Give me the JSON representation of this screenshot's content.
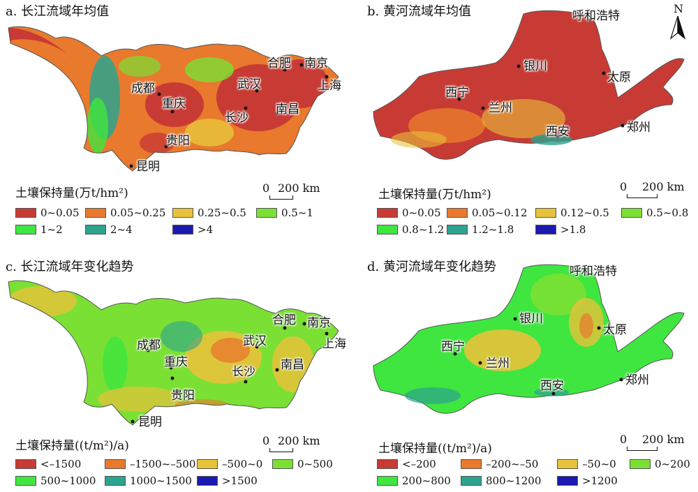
{
  "panels": [
    {
      "id": "a",
      "title": "a. 长江流域年均值",
      "legend_title": "土壤保持量(万t/hm²)",
      "legend": [
        {
          "label": "0~0.05",
          "color": "#c83b35"
        },
        {
          "label": "0.05~0.25",
          "color": "#e8792d"
        },
        {
          "label": "0.25~0.5",
          "color": "#e8c23a"
        },
        {
          "label": "0.5~1",
          "color": "#7be034"
        },
        {
          "label": "1~2",
          "color": "#3fe63f"
        },
        {
          "label": "2~4",
          "color": "#2ba38e"
        },
        {
          "label": ">4",
          "color": "#1a1ab0"
        }
      ],
      "scale_label": "200 km",
      "cities": [
        "昆明",
        "贵阳",
        "重庆",
        "成都",
        "长沙",
        "武汉",
        "南昌",
        "合肥",
        "南京",
        "上海"
      ]
    },
    {
      "id": "b",
      "title": "b. 黄河流域年均值",
      "legend_title": "土壤保持量(万t/hm²)",
      "legend": [
        {
          "label": "0~0.05",
          "color": "#c83b35"
        },
        {
          "label": "0.05~0.12",
          "color": "#e8792d"
        },
        {
          "label": "0.12~0.5",
          "color": "#e8c23a"
        },
        {
          "label": "0.5~0.8",
          "color": "#7be034"
        },
        {
          "label": "0.8~1.2",
          "color": "#3fe63f"
        },
        {
          "label": "1.2~1.8",
          "color": "#2ba38e"
        },
        {
          "label": ">1.8",
          "color": "#1a1ab0"
        }
      ],
      "scale_label": "200 km",
      "cities": [
        "呼和浩特",
        "银川",
        "太原",
        "西宁",
        "兰州",
        "西安",
        "郑州"
      ]
    },
    {
      "id": "c",
      "title": "c. 长江流域年变化趋势",
      "legend_title": "土壤保持量((t/m²)/a)",
      "legend": [
        {
          "label": "<–1500",
          "color": "#c83b35"
        },
        {
          "label": "–1500~–500",
          "color": "#e8792d"
        },
        {
          "label": "–500~0",
          "color": "#e8c23a"
        },
        {
          "label": "0~500",
          "color": "#7be034"
        },
        {
          "label": "500~1000",
          "color": "#3fe63f"
        },
        {
          "label": "1000~1500",
          "color": "#2ba38e"
        },
        {
          "label": ">1500",
          "color": "#1a1ab0"
        }
      ],
      "scale_label": "200 km",
      "cities": [
        "昆明",
        "贵阳",
        "重庆",
        "成都",
        "长沙",
        "武汉",
        "南昌",
        "合肥",
        "南京",
        "上海"
      ]
    },
    {
      "id": "d",
      "title": "d. 黄河流域年变化趋势",
      "legend_title": "土壤保持量((t/m²)/a)",
      "legend": [
        {
          "label": "<–200",
          "color": "#c83b35"
        },
        {
          "label": "–200~–50",
          "color": "#e8792d"
        },
        {
          "label": "–50~0",
          "color": "#e8c23a"
        },
        {
          "label": "0~200",
          "color": "#7be034"
        },
        {
          "label": "200~800",
          "color": "#3fe63f"
        },
        {
          "label": "800~1200",
          "color": "#2ba38e"
        },
        {
          "label": ">1200",
          "color": "#1a1ab0"
        }
      ],
      "scale_label": "200 km",
      "cities": [
        "呼和浩特",
        "银川",
        "太原",
        "西宁",
        "兰州",
        "西安",
        "郑州"
      ]
    }
  ],
  "north_label": "N",
  "scale_zero": "0"
}
